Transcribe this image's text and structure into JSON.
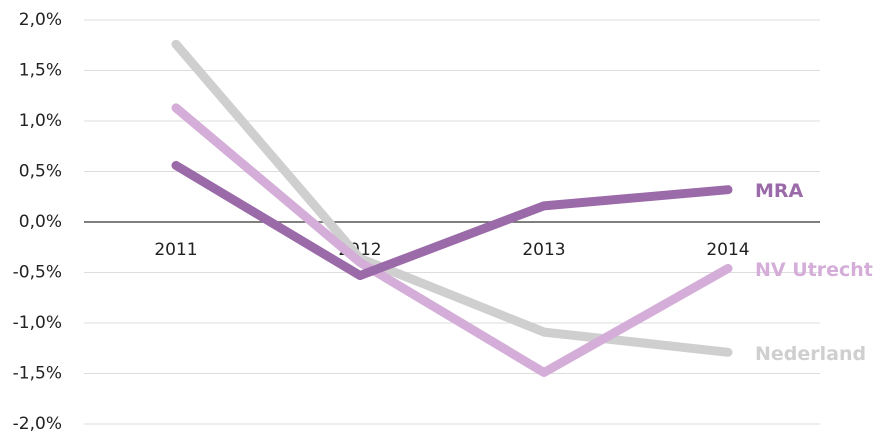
{
  "chart_data": {
    "type": "line",
    "categories": [
      "2011",
      "2012",
      "2013",
      "2014"
    ],
    "series": [
      {
        "name": "Nederland",
        "color": "#cfcfcf",
        "values": [
          1.76,
          -0.36,
          -1.09,
          -1.29
        ]
      },
      {
        "name": "NV Utrecht",
        "color": "#d4aed8",
        "values": [
          1.13,
          -0.4,
          -1.49,
          -0.46
        ]
      },
      {
        "name": "MRA",
        "color": "#9b6aa8",
        "values": [
          0.56,
          -0.53,
          0.16,
          0.32
        ]
      }
    ],
    "ylim": [
      -2,
      2
    ],
    "yticks": [
      {
        "value": -2,
        "label": "-2,0%"
      },
      {
        "value": -1.5,
        "label": "-1,5%"
      },
      {
        "value": -1,
        "label": "-1,0%"
      },
      {
        "value": -0.5,
        "label": "-0,5%"
      },
      {
        "value": 0,
        "label": "0,0%"
      },
      {
        "value": 0.5,
        "label": "0,5%"
      },
      {
        "value": 1,
        "label": "1,0%"
      },
      {
        "value": 1.5,
        "label": "1,5%"
      },
      {
        "value": 2,
        "label": "2,0%"
      }
    ],
    "grid": true
  }
}
